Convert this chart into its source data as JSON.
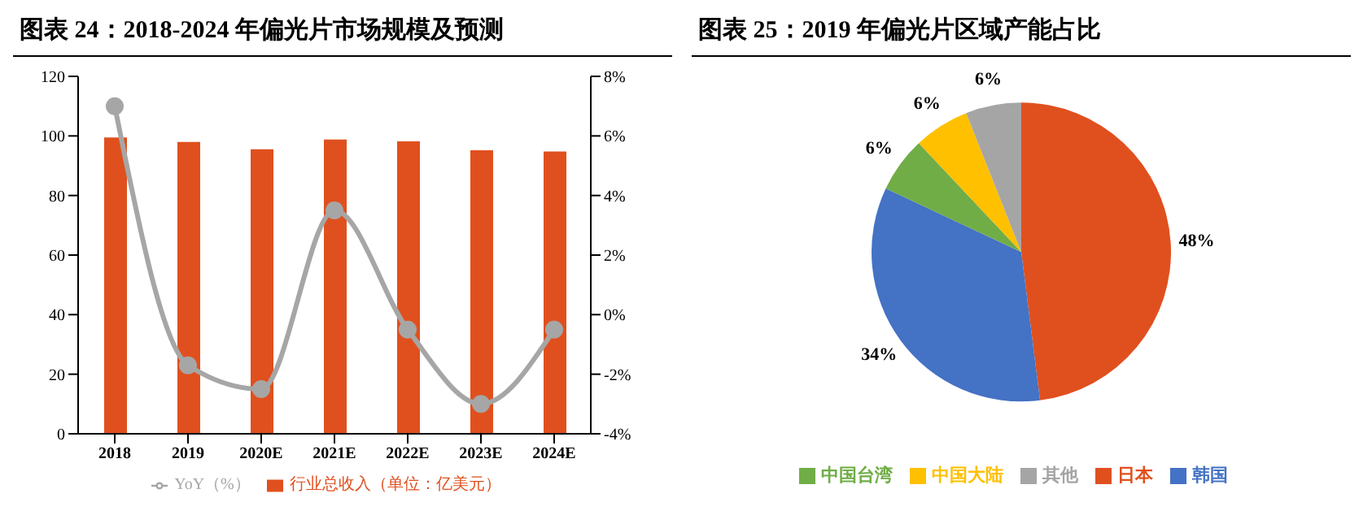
{
  "chart_data": [
    {
      "type": "bar",
      "title": "图表 24：2018-2024 年偏光片市场规模及预测",
      "categories": [
        "2018",
        "2019",
        "2020E",
        "2021E",
        "2022E",
        "2023E",
        "2024E"
      ],
      "series": [
        {
          "name": "行业总收入（单位：亿美元）",
          "type": "bar",
          "color": "#e0501e",
          "values": [
            99.5,
            98,
            95.5,
            98.8,
            98.2,
            95.2,
            94.8
          ]
        },
        {
          "name": "YoY（%）",
          "type": "line",
          "axis": "y2",
          "color": "#a6a6a6",
          "marker": "circle",
          "values": [
            7,
            -1.7,
            -2.5,
            3.5,
            -0.5,
            -3,
            -0.5
          ]
        }
      ],
      "ylim": [
        0,
        120
      ],
      "yticks": [
        0,
        20,
        40,
        60,
        80,
        100,
        120
      ],
      "y2lim": [
        -4,
        8
      ],
      "y2ticks": [
        {
          "value": -4,
          "label": "-4%"
        },
        {
          "value": -2,
          "label": "-2%"
        },
        {
          "value": 0,
          "label": "0%"
        },
        {
          "value": 2,
          "label": "2%"
        },
        {
          "value": 4,
          "label": "4%"
        },
        {
          "value": 6,
          "label": "6%"
        },
        {
          "value": 8,
          "label": "8%"
        }
      ],
      "grid": false,
      "legend": "bottom"
    },
    {
      "type": "pie",
      "title": "图表 25：2019 年偏光片区域产能占比",
      "categories": [
        "日本",
        "韩国",
        "中国台湾",
        "中国大陆",
        "其他"
      ],
      "values": [
        48,
        34,
        6,
        6,
        6
      ],
      "value_labels": [
        "48%",
        "34%",
        "6%",
        "6%",
        "6%"
      ],
      "colors": [
        "#e0501e",
        "#4472c4",
        "#70ad47",
        "#ffc000",
        "#a5a5a5"
      ],
      "legend": "bottom"
    }
  ]
}
